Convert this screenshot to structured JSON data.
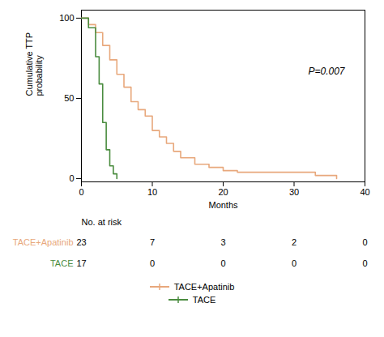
{
  "chart_data": {
    "type": "step",
    "xlabel": "Months",
    "ylabel": "Cumulative TTP\nprobability",
    "annotations": [
      "P=0.007"
    ],
    "xlim": [
      0,
      40
    ],
    "ylim": [
      -2,
      105
    ],
    "xticks": [
      0,
      10,
      20,
      30,
      40
    ],
    "yticks": [
      0,
      50,
      100
    ],
    "grid": false,
    "legend": "bottom",
    "at_risk_label": "No. at risk",
    "at_risk_x": [
      0,
      10,
      20,
      30,
      40
    ],
    "series": [
      {
        "name": "TACE+Apatinib",
        "color": "#E8A87C",
        "x": [
          0,
          0.5,
          1.0,
          2.0,
          3.0,
          4.0,
          5.0,
          6.0,
          7.0,
          8.0,
          9.0,
          10.0,
          11.0,
          12.0,
          13.0,
          14.0,
          16.0,
          18.0,
          20.0,
          22.0,
          25.0,
          30.0,
          33.0,
          36.0
        ],
        "values": [
          100,
          100,
          96,
          91,
          83,
          74,
          65,
          57,
          48,
          43,
          39,
          30,
          26,
          22,
          17,
          13,
          9,
          7,
          5,
          4,
          4,
          4,
          2,
          0
        ],
        "at_risk": [
          23,
          7,
          3,
          2,
          0
        ]
      },
      {
        "name": "TACE",
        "color": "#4A8C3F",
        "x": [
          0,
          1.0,
          2.0,
          2.5,
          3.0,
          3.5,
          4.0,
          4.5,
          5.0
        ],
        "values": [
          100,
          94,
          76,
          59,
          35,
          18,
          8,
          3,
          0
        ],
        "at_risk": [
          17,
          0,
          0,
          0,
          0
        ]
      }
    ]
  }
}
